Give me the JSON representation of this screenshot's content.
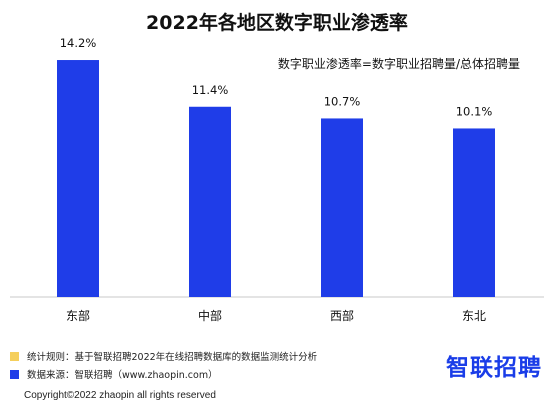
{
  "colors": {
    "bar": "#1f3de8",
    "note_rule_swatch": "#f5cf5c",
    "note_source_swatch": "#1f3de8",
    "brand": "#1a3de8"
  },
  "header": {
    "title": "2022年各地区数字职业渗透率",
    "formula": "数字职业渗透率=数字职业招聘量/总体招聘量"
  },
  "chart_data": {
    "type": "bar",
    "title": "2022年各地区数字职业渗透率",
    "categories": [
      "东部",
      "中部",
      "西部",
      "东北"
    ],
    "values": [
      14.2,
      11.4,
      10.7,
      10.1
    ],
    "value_labels": [
      "14.2%",
      "11.4%",
      "10.7%",
      "10.1%"
    ],
    "unit": "%",
    "ylim": [
      0,
      16
    ],
    "grid": false,
    "legend": "none"
  },
  "notes": {
    "rule": "统计规则：基于智联招聘2022年在线招聘数据库的数据监测统计分析",
    "source": "数据来源：智联招聘（www.zhaopin.com）"
  },
  "brand": {
    "logo_text": "智联招聘"
  },
  "footer": {
    "copyright": "Copyright©2022 zhaopin all rights reserved"
  }
}
